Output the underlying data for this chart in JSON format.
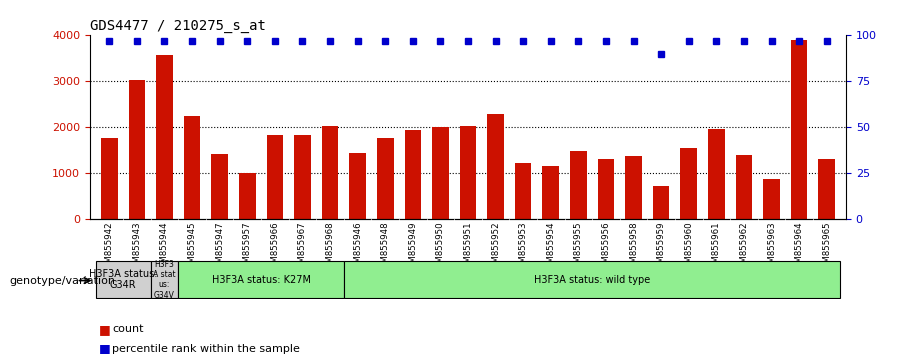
{
  "title": "GDS4477 / 210275_s_at",
  "samples": [
    "GSM855942",
    "GSM855943",
    "GSM855944",
    "GSM855945",
    "GSM855947",
    "GSM855957",
    "GSM855966",
    "GSM855967",
    "GSM855968",
    "GSM855946",
    "GSM855948",
    "GSM855949",
    "GSM855950",
    "GSM855951",
    "GSM855952",
    "GSM855953",
    "GSM855954",
    "GSM855955",
    "GSM855956",
    "GSM855958",
    "GSM855959",
    "GSM855960",
    "GSM855961",
    "GSM855962",
    "GSM855963",
    "GSM855964",
    "GSM855965"
  ],
  "counts": [
    1780,
    3020,
    3580,
    2250,
    1420,
    1020,
    1840,
    1840,
    2030,
    1440,
    1760,
    1940,
    2000,
    2030,
    2300,
    1230,
    1160,
    1480,
    1320,
    1390,
    720,
    1560,
    1960,
    1400,
    870,
    3900,
    1310
  ],
  "percentile_ranks": [
    97,
    97,
    97,
    97,
    97,
    97,
    97,
    97,
    97,
    97,
    97,
    97,
    97,
    97,
    97,
    97,
    97,
    97,
    97,
    97,
    90,
    97,
    97,
    97,
    97,
    97,
    97
  ],
  "bar_color": "#cc1100",
  "dot_color": "#0000cc",
  "ylim_left": [
    0,
    4000
  ],
  "ylim_right": [
    0,
    100
  ],
  "yticks_left": [
    0,
    1000,
    2000,
    3000,
    4000
  ],
  "yticks_right": [
    0,
    25,
    50,
    75,
    100
  ],
  "groups": [
    {
      "label": "H3F3A status:\nG34R",
      "start": 0,
      "end": 2,
      "color": "#d0d0d0"
    },
    {
      "label": "H3F3\nA stat\nus:\nG34V",
      "start": 2,
      "end": 3,
      "color": "#d0d0d0"
    },
    {
      "label": "H3F3A status: K27M",
      "start": 3,
      "end": 9,
      "color": "#90ee90"
    },
    {
      "label": "H3F3A status: wild type",
      "start": 9,
      "end": 27,
      "color": "#90ee90"
    }
  ],
  "genotype_label": "genotype/variation",
  "legend_count_label": "count",
  "legend_pct_label": "percentile rank within the sample",
  "background_color": "#ffffff",
  "xticklabel_bg": "#d3d3d3"
}
